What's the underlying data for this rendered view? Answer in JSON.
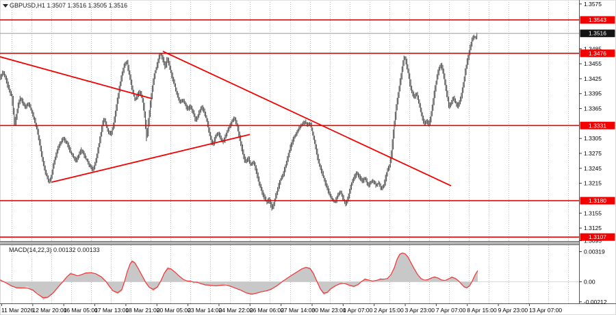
{
  "window": {
    "app": "trading-terminal",
    "chart_title": "GBPUSD,H1 1.3507 1.3516 1.3505 1.3516"
  },
  "chart_data": {
    "type": "candlestick",
    "symbol": "GBPUSD",
    "timeframe": "H1",
    "title_text": "GBPUSD,H1 1.3507 1.3516 1.3505 1.3516",
    "ohlc": {
      "open": "1.3507",
      "high": "1.3516",
      "low": "1.3505",
      "close": "1.3516"
    },
    "current_price": 1.3516,
    "price_axis": {
      "ylim": [
        1.3099,
        1.3583
      ],
      "visible_ticks": [
        1.3575,
        1.3485,
        1.3455,
        1.3425,
        1.3395,
        1.3365,
        1.3305,
        1.3275,
        1.3245,
        1.3215,
        1.3155,
        1.3125,
        1.3095
      ]
    },
    "horizontal_levels": [
      1.3543,
      1.3476,
      1.3331,
      1.318,
      1.3107
    ],
    "trend_lines": [
      {
        "x1": 0,
        "p1": 1.3469,
        "x2": 222,
        "p2": 1.3385
      },
      {
        "x1": 238,
        "p1": 1.348,
        "x2": 659,
        "p2": 1.321
      },
      {
        "x1": 75,
        "p1": 1.3217,
        "x2": 365,
        "p2": 1.3313
      }
    ],
    "price_path": [
      [
        0,
        1.3425
      ],
      [
        5,
        1.3438
      ],
      [
        10,
        1.3421
      ],
      [
        14,
        1.3401
      ],
      [
        18,
        1.339
      ],
      [
        22,
        1.3331
      ],
      [
        26,
        1.3363
      ],
      [
        30,
        1.3388
      ],
      [
        34,
        1.3377
      ],
      [
        38,
        1.3367
      ],
      [
        42,
        1.3377
      ],
      [
        46,
        1.3363
      ],
      [
        50,
        1.3346
      ],
      [
        54,
        1.3328
      ],
      [
        58,
        1.3301
      ],
      [
        62,
        1.3267
      ],
      [
        66,
        1.3242
      ],
      [
        70,
        1.3225
      ],
      [
        73,
        1.3217
      ],
      [
        76,
        1.3232
      ],
      [
        80,
        1.326
      ],
      [
        84,
        1.328
      ],
      [
        88,
        1.3294
      ],
      [
        93,
        1.3305
      ],
      [
        98,
        1.3297
      ],
      [
        103,
        1.328
      ],
      [
        108,
        1.3267
      ],
      [
        112,
        1.326
      ],
      [
        116,
        1.3272
      ],
      [
        120,
        1.3283
      ],
      [
        124,
        1.3269
      ],
      [
        128,
        1.326
      ],
      [
        132,
        1.3249
      ],
      [
        136,
        1.3242
      ],
      [
        140,
        1.3255
      ],
      [
        144,
        1.3283
      ],
      [
        148,
        1.3315
      ],
      [
        152,
        1.3346
      ],
      [
        155,
        1.3335
      ],
      [
        158,
        1.3322
      ],
      [
        162,
        1.3312
      ],
      [
        166,
        1.3328
      ],
      [
        170,
        1.3363
      ],
      [
        174,
        1.3397
      ],
      [
        178,
        1.3429
      ],
      [
        182,
        1.3451
      ],
      [
        186,
        1.3459
      ],
      [
        189,
        1.3438
      ],
      [
        192,
        1.3415
      ],
      [
        195,
        1.3397
      ],
      [
        198,
        1.3383
      ],
      [
        201,
        1.339
      ],
      [
        204,
        1.34
      ],
      [
        207,
        1.3393
      ],
      [
        210,
        1.3374
      ],
      [
        213,
        1.3338
      ],
      [
        215,
        1.3304
      ],
      [
        218,
        1.3346
      ],
      [
        221,
        1.3382
      ],
      [
        224,
        1.3415
      ],
      [
        227,
        1.3438
      ],
      [
        230,
        1.3451
      ],
      [
        233,
        1.347
      ],
      [
        236,
        1.3476
      ],
      [
        239,
        1.3462
      ],
      [
        242,
        1.3447
      ],
      [
        245,
        1.3467
      ],
      [
        248,
        1.3451
      ],
      [
        251,
        1.3434
      ],
      [
        255,
        1.3415
      ],
      [
        259,
        1.3396
      ],
      [
        263,
        1.3377
      ],
      [
        267,
        1.3383
      ],
      [
        271,
        1.3374
      ],
      [
        275,
        1.3363
      ],
      [
        279,
        1.337
      ],
      [
        283,
        1.3356
      ],
      [
        287,
        1.3339
      ],
      [
        291,
        1.3355
      ],
      [
        295,
        1.3368
      ],
      [
        299,
        1.3359
      ],
      [
        303,
        1.3341
      ],
      [
        307,
        1.3313
      ],
      [
        311,
        1.3291
      ],
      [
        315,
        1.3306
      ],
      [
        319,
        1.3317
      ],
      [
        323,
        1.3306
      ],
      [
        327,
        1.3297
      ],
      [
        331,
        1.3313
      ],
      [
        335,
        1.3327
      ],
      [
        339,
        1.3338
      ],
      [
        343,
        1.3346
      ],
      [
        347,
        1.3331
      ],
      [
        351,
        1.3305
      ],
      [
        355,
        1.3278
      ],
      [
        359,
        1.3257
      ],
      [
        363,
        1.3267
      ],
      [
        367,
        1.3251
      ],
      [
        371,
        1.326
      ],
      [
        375,
        1.324
      ],
      [
        379,
        1.3217
      ],
      [
        383,
        1.3199
      ],
      [
        387,
        1.3185
      ],
      [
        391,
        1.3176
      ],
      [
        394,
        1.3184
      ],
      [
        398,
        1.3162
      ],
      [
        402,
        1.3181
      ],
      [
        406,
        1.3202
      ],
      [
        410,
        1.3221
      ],
      [
        414,
        1.3231
      ],
      [
        418,
        1.3251
      ],
      [
        422,
        1.3272
      ],
      [
        426,
        1.3293
      ],
      [
        430,
        1.3306
      ],
      [
        434,
        1.3317
      ],
      [
        438,
        1.3327
      ],
      [
        442,
        1.3334
      ],
      [
        446,
        1.3339
      ],
      [
        450,
        1.3331
      ],
      [
        454,
        1.3334
      ],
      [
        458,
        1.3313
      ],
      [
        462,
        1.3286
      ],
      [
        466,
        1.3258
      ],
      [
        470,
        1.324
      ],
      [
        474,
        1.3224
      ],
      [
        478,
        1.3207
      ],
      [
        482,
        1.3194
      ],
      [
        486,
        1.3183
      ],
      [
        490,
        1.3176
      ],
      [
        494,
        1.319
      ],
      [
        498,
        1.3199
      ],
      [
        502,
        1.3183
      ],
      [
        506,
        1.3172
      ],
      [
        510,
        1.319
      ],
      [
        514,
        1.3213
      ],
      [
        518,
        1.3227
      ],
      [
        522,
        1.3235
      ],
      [
        526,
        1.3227
      ],
      [
        530,
        1.3217
      ],
      [
        534,
        1.3227
      ],
      [
        538,
        1.321
      ],
      [
        542,
        1.3217
      ],
      [
        546,
        1.3221
      ],
      [
        550,
        1.321
      ],
      [
        554,
        1.3217
      ],
      [
        558,
        1.3203
      ],
      [
        562,
        1.3213
      ],
      [
        566,
        1.3238
      ],
      [
        570,
        1.3251
      ],
      [
        573,
        1.3279
      ],
      [
        576,
        1.3327
      ],
      [
        579,
        1.3361
      ],
      [
        582,
        1.3389
      ],
      [
        585,
        1.3416
      ],
      [
        588,
        1.3444
      ],
      [
        591,
        1.3471
      ],
      [
        594,
        1.3458
      ],
      [
        597,
        1.3437
      ],
      [
        600,
        1.3412
      ],
      [
        603,
        1.3396
      ],
      [
        606,
        1.3386
      ],
      [
        609,
        1.3396
      ],
      [
        612,
        1.3382
      ],
      [
        615,
        1.3361
      ],
      [
        618,
        1.3345
      ],
      [
        621,
        1.3334
      ],
      [
        624,
        1.3341
      ],
      [
        627,
        1.3331
      ],
      [
        630,
        1.3348
      ],
      [
        633,
        1.3375
      ],
      [
        636,
        1.3403
      ],
      [
        639,
        1.3427
      ],
      [
        642,
        1.3447
      ],
      [
        645,
        1.3455
      ],
      [
        648,
        1.3437
      ],
      [
        651,
        1.3416
      ],
      [
        654,
        1.3389
      ],
      [
        657,
        1.3368
      ],
      [
        660,
        1.3375
      ],
      [
        663,
        1.3389
      ],
      [
        666,
        1.3378
      ],
      [
        669,
        1.3368
      ],
      [
        672,
        1.3378
      ],
      [
        675,
        1.3392
      ],
      [
        678,
        1.3416
      ],
      [
        681,
        1.3444
      ],
      [
        684,
        1.3465
      ],
      [
        687,
        1.3485
      ],
      [
        690,
        1.3502
      ],
      [
        693,
        1.351
      ],
      [
        696,
        1.3506
      ],
      [
        698,
        1.3516
      ]
    ],
    "time_axis": {
      "labels": [
        "11 Mar 2026",
        "12 Mar 20:00",
        "16 Mar 05:00",
        "17 Mar 13:00",
        "18 Mar 21:00",
        "20 Mar 05:00",
        "23 Mar 14:00",
        "24 Mar 22:00",
        "26 Mar 06:00",
        "27 Mar 14:00",
        "30 Mar 23:00",
        "1 Apr 07:00",
        "2 Apr 15:00",
        "3 Apr 23:00",
        "7 Apr 07:00",
        "8 Apr 15:00",
        "9 Apr 23:00",
        "13 Apr 07:00"
      ]
    },
    "macd": {
      "label": "MACD(14,22,3) 0.00132 0.00133",
      "name": "MACD",
      "params": "14,22,3",
      "values": [
        "0.00132",
        "0.00133"
      ],
      "ylim": [
        -0.00228,
        0.00388
      ],
      "axis_ticks": [
        {
          "label": "0.00319",
          "value": 0.00319
        },
        {
          "label": "0.00",
          "value": 0
        },
        {
          "label": "-0.00212",
          "value": -0.00212
        }
      ],
      "path": [
        [
          0,
          0.0003
        ],
        [
          8,
          -0.0001
        ],
        [
          16,
          -0.0004
        ],
        [
          24,
          -0.0007
        ],
        [
          32,
          -0.0007
        ],
        [
          40,
          -0.0005
        ],
        [
          48,
          -0.0009
        ],
        [
          55,
          -0.0012
        ],
        [
          63,
          -0.0019
        ],
        [
          70,
          -0.0017
        ],
        [
          78,
          -0.0012
        ],
        [
          85,
          -0.0005
        ],
        [
          92,
          0.0
        ],
        [
          98,
          0.0006
        ],
        [
          103,
          0.001
        ],
        [
          108,
          0.0008
        ],
        [
          113,
          0.0005
        ],
        [
          118,
          0.0007
        ],
        [
          125,
          0.001
        ],
        [
          133,
          0.001
        ],
        [
          140,
          0.0009
        ],
        [
          148,
          0.0006
        ],
        [
          155,
          0.0
        ],
        [
          160,
          -0.0005
        ],
        [
          165,
          -0.001
        ],
        [
          172,
          -0.0013
        ],
        [
          178,
          -0.001
        ],
        [
          182,
          0.0
        ],
        [
          186,
          0.0012
        ],
        [
          190,
          0.002
        ],
        [
          193,
          0.0023
        ],
        [
          197,
          0.0021
        ],
        [
          202,
          0.0015
        ],
        [
          208,
          0.0005
        ],
        [
          213,
          -0.0001
        ],
        [
          218,
          -0.0006
        ],
        [
          224,
          -0.001
        ],
        [
          230,
          -0.0006
        ],
        [
          235,
          0.0
        ],
        [
          240,
          0.001
        ],
        [
          245,
          0.0016
        ],
        [
          250,
          0.0014
        ],
        [
          256,
          0.001
        ],
        [
          262,
          0.0006
        ],
        [
          268,
          0.0002
        ],
        [
          273,
          0.0
        ],
        [
          278,
          0.0002
        ],
        [
          283,
          -0.0002
        ],
        [
          288,
          0.0001
        ],
        [
          293,
          -0.0002
        ],
        [
          300,
          -0.0004
        ],
        [
          308,
          -0.0003
        ],
        [
          315,
          -0.0005
        ],
        [
          322,
          -0.0004
        ],
        [
          330,
          -0.0002
        ],
        [
          337,
          -0.0005
        ],
        [
          345,
          -0.0007
        ],
        [
          353,
          -0.0009
        ],
        [
          360,
          -0.0012
        ],
        [
          368,
          -0.0014
        ],
        [
          375,
          -0.0012
        ],
        [
          382,
          -0.001
        ],
        [
          390,
          -0.001
        ],
        [
          397,
          -0.0008
        ],
        [
          405,
          -0.0004
        ],
        [
          412,
          0.0
        ],
        [
          420,
          0.0004
        ],
        [
          428,
          0.0008
        ],
        [
          435,
          0.0011
        ],
        [
          441,
          0.0014
        ],
        [
          447,
          0.0016
        ],
        [
          453,
          0.0015
        ],
        [
          458,
          0.001
        ],
        [
          463,
          0.0
        ],
        [
          468,
          -0.0008
        ],
        [
          473,
          -0.0014
        ],
        [
          478,
          -0.0012
        ],
        [
          483,
          -0.0007
        ],
        [
          490,
          -0.0004
        ],
        [
          497,
          -0.0002
        ],
        [
          503,
          0.0
        ],
        [
          510,
          -0.0004
        ],
        [
          517,
          -0.0006
        ],
        [
          523,
          -0.0003
        ],
        [
          528,
          0.0
        ],
        [
          533,
          0.0004
        ],
        [
          538,
          0.0002
        ],
        [
          544,
          0.0
        ],
        [
          550,
          0.0001
        ],
        [
          556,
          0.0004
        ],
        [
          561,
          0.0002
        ],
        [
          566,
          0.0003
        ],
        [
          571,
          0.0006
        ],
        [
          576,
          0.0014
        ],
        [
          580,
          0.0025
        ],
        [
          584,
          0.003
        ],
        [
          588,
          0.0031
        ],
        [
          592,
          0.003
        ],
        [
          596,
          0.0027
        ],
        [
          600,
          0.0021
        ],
        [
          605,
          0.0014
        ],
        [
          610,
          0.0007
        ],
        [
          615,
          0.0003
        ],
        [
          620,
          0.0001
        ],
        [
          625,
          0.0002
        ],
        [
          630,
          0.0004
        ],
        [
          635,
          0.0006
        ],
        [
          640,
          0.0004
        ],
        [
          645,
          0.0002
        ],
        [
          650,
          0.0
        ],
        [
          655,
          0.0003
        ],
        [
          660,
          0.0006
        ],
        [
          665,
          0.0004
        ],
        [
          670,
          0.0001
        ],
        [
          674,
          -0.0002
        ],
        [
          678,
          -0.0006
        ],
        [
          682,
          -0.0007
        ],
        [
          686,
          -0.0005
        ],
        [
          690,
          0.0
        ],
        [
          694,
          0.0008
        ],
        [
          698,
          0.0013
        ]
      ]
    },
    "colors": {
      "level_line": "#f50000",
      "trend_line": "#f50000",
      "candle": "#4e4e4e",
      "grid": "#bbbbbb",
      "current_line": "#9a9a9a",
      "current_label_bg": "#141414",
      "level_label_bg": "#f50000",
      "macd_fill": "#c8c8c8",
      "macd_line": "#f43b3b",
      "axis_text": "#000000"
    }
  }
}
